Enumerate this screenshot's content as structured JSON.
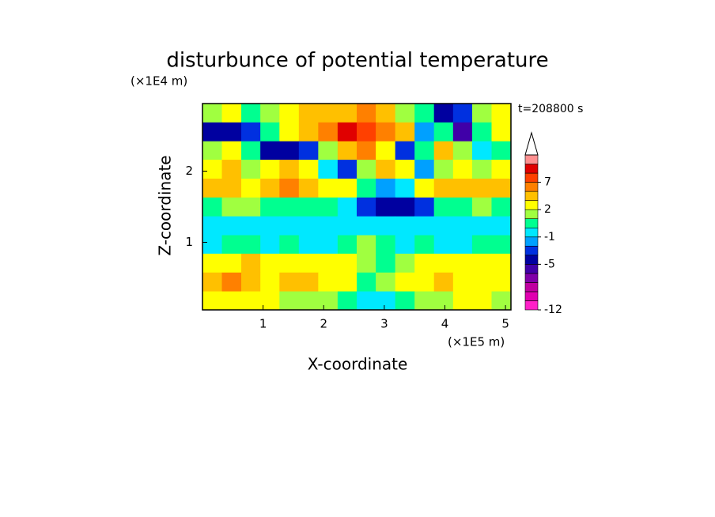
{
  "chart_data": {
    "type": "contour",
    "title": "disturbunce of potential temperature",
    "xlabel": "X-coordinate",
    "ylabel": "Z-coordinate",
    "xunit": "(×1E5 m)",
    "yunit": "(×1E4 m)",
    "annotation": "t=208800 s",
    "xlim": [
      0,
      5.09
    ],
    "ylim": [
      0.05,
      2.95
    ],
    "xticks": [
      1,
      2,
      3,
      4,
      5
    ],
    "yticks": [
      1,
      2
    ],
    "x": [
      0.16,
      0.48,
      0.8,
      1.11,
      1.43,
      1.75,
      2.07,
      2.39,
      2.7,
      3.02,
      3.34,
      3.66,
      3.98,
      4.29,
      4.61,
      4.93
    ],
    "y": [
      2.82,
      2.55,
      2.29,
      2.03,
      1.76,
      1.5,
      1.23,
      0.97,
      0.71,
      0.44,
      0.18
    ],
    "z": [
      [
        1,
        2,
        0,
        1,
        2,
        3,
        3,
        4,
        5,
        3,
        1,
        0,
        -5,
        -3,
        1,
        2
      ],
      [
        -5,
        -5,
        -3,
        0,
        2,
        3,
        5,
        9,
        7,
        5,
        3,
        -2,
        0,
        -6,
        0,
        2
      ],
      [
        1,
        2,
        0,
        -4,
        -5,
        -3,
        1,
        3,
        5,
        2,
        -3,
        0,
        3,
        1,
        -1,
        0
      ],
      [
        2,
        3,
        1,
        2,
        3,
        2,
        -1,
        -3,
        1,
        3,
        2,
        -2,
        1,
        2,
        1,
        2
      ],
      [
        3,
        3,
        2,
        3,
        5,
        3,
        2,
        2,
        0,
        -2,
        -1,
        2,
        3,
        3,
        3,
        3
      ],
      [
        0,
        1,
        1,
        0,
        0,
        0,
        0,
        -1,
        -3,
        -4,
        -5,
        -3,
        0,
        0,
        1,
        0
      ],
      [
        -1,
        -1,
        -1,
        -1,
        -1,
        -1,
        -1,
        -1,
        -1,
        -1,
        -1,
        -1,
        -1,
        -1,
        -1,
        -1
      ],
      [
        -1,
        0,
        0,
        -1,
        0,
        -1,
        -1,
        0,
        1,
        0,
        -1,
        0,
        -1,
        -1,
        0,
        0
      ],
      [
        2,
        2,
        3,
        2,
        2,
        2,
        2,
        2,
        1,
        0,
        1,
        2,
        2,
        2,
        2,
        2
      ],
      [
        3,
        5,
        3,
        2,
        3,
        3,
        2,
        2,
        0,
        1,
        2,
        2,
        3,
        2,
        2,
        2
      ],
      [
        2,
        2,
        2,
        2,
        1,
        1,
        1,
        0,
        -1,
        -1,
        0,
        1,
        1,
        2,
        2,
        1
      ]
    ],
    "levels": [
      -12,
      -10,
      -8,
      -7,
      -6,
      -5,
      -3,
      -2,
      -1,
      0,
      1,
      2,
      3,
      5,
      7,
      9,
      11
    ],
    "colors": [
      "#ff20c8",
      "#e000b0",
      "#c000a0",
      "#8000a8",
      "#4000a8",
      "#0000a0",
      "#0030e0",
      "#00a0ff",
      "#00e8ff",
      "#00ff90",
      "#a0ff40",
      "#ffff00",
      "#ffc000",
      "#ff8000",
      "#ff4000",
      "#e00000",
      "#ff9090"
    ],
    "colorbar_ticks": [
      -12,
      -5,
      -1,
      2,
      7
    ]
  }
}
